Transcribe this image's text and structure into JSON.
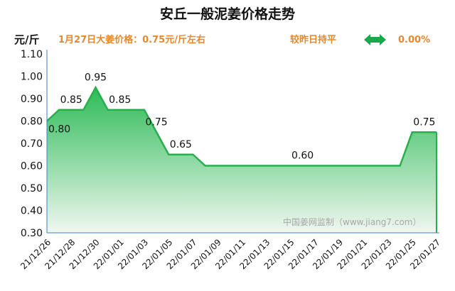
{
  "chart_data": {
    "type": "area",
    "title": "安丘一般泥姜价格走势",
    "ylabel": "元/斤",
    "ylim": [
      0.3,
      1.1
    ],
    "yticks": [
      "0.30",
      "0.40",
      "0.50",
      "0.60",
      "0.70",
      "0.80",
      "0.90",
      "1.00",
      "1.10"
    ],
    "x_tick_labels": [
      "21/12/26",
      "21/12/28",
      "21/12/30",
      "22/01/01",
      "22/01/03",
      "22/01/05",
      "22/01/07",
      "22/01/09",
      "22/01/11",
      "22/01/13",
      "22/01/15",
      "22/01/17",
      "22/01/19",
      "22/01/21",
      "22/01/23",
      "22/01/25",
      "22/01/27"
    ],
    "x": [
      "21/12/26",
      "21/12/27",
      "21/12/28",
      "21/12/29",
      "21/12/30",
      "21/12/31",
      "22/01/01",
      "22/01/02",
      "22/01/03",
      "22/01/04",
      "22/01/05",
      "22/01/06",
      "22/01/07",
      "22/01/08",
      "22/01/09",
      "22/01/10",
      "22/01/11",
      "22/01/12",
      "22/01/13",
      "22/01/14",
      "22/01/15",
      "22/01/16",
      "22/01/17",
      "22/01/18",
      "22/01/19",
      "22/01/20",
      "22/01/21",
      "22/01/22",
      "22/01/23",
      "22/01/24",
      "22/01/25",
      "22/01/26",
      "22/01/27"
    ],
    "values": [
      0.8,
      0.85,
      0.85,
      0.85,
      0.95,
      0.85,
      0.85,
      0.85,
      0.85,
      0.75,
      0.65,
      0.65,
      0.65,
      0.6,
      0.6,
      0.6,
      0.6,
      0.6,
      0.6,
      0.6,
      0.6,
      0.6,
      0.6,
      0.6,
      0.6,
      0.6,
      0.6,
      0.6,
      0.6,
      0.6,
      0.75,
      0.75,
      0.75
    ],
    "data_labels": [
      {
        "index": 0,
        "text": "0.80"
      },
      {
        "index": 2,
        "text": "0.85"
      },
      {
        "index": 4,
        "text": "0.95"
      },
      {
        "index": 6,
        "text": "0.85"
      },
      {
        "index": 9,
        "text": "0.75"
      },
      {
        "index": 11,
        "text": "0.65"
      },
      {
        "index": 21,
        "text": "0.60"
      },
      {
        "index": 31,
        "text": "0.75"
      }
    ],
    "line_color": "#27b04a",
    "fill_top_color": "#2dbb57",
    "fill_bottom_color": "#f0f7f0",
    "grid": false,
    "legend": "none"
  },
  "info": {
    "price_text": "1月27日大姜价格：0.75元/斤左右",
    "change_text": "较昨日持平",
    "change_icon": "double-arrow-icon",
    "change_icon_color": "#1aa84a",
    "change_value": "0.00%"
  },
  "watermark": "中国姜网监制（www.jiang7.com）"
}
